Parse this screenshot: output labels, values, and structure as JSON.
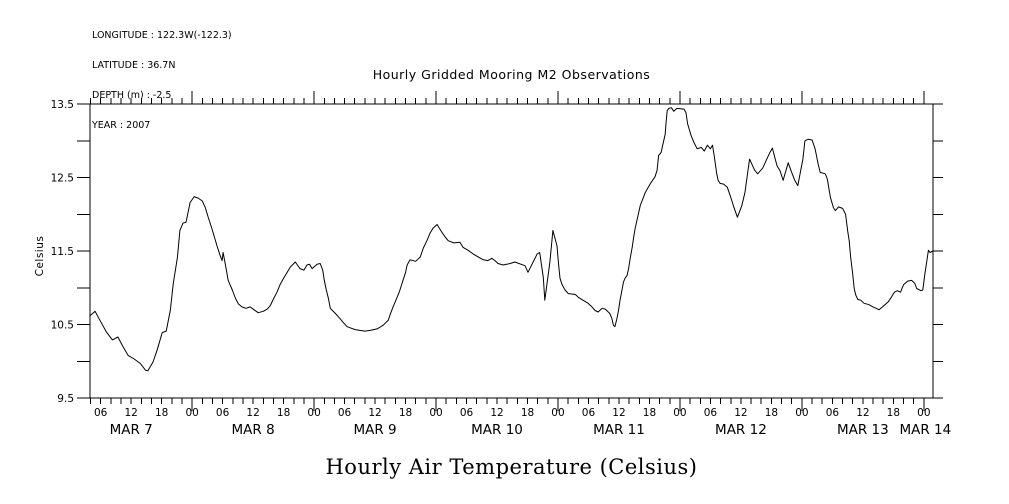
{
  "meta": {
    "longitude": "LONGITUDE : 122.3W(-122.3)",
    "latitude": "LATITUDE : 36.7N",
    "depth": "DEPTH (m) : -2.5",
    "year": "YEAR : 2007"
  },
  "title": "Hourly Gridded Mooring M2 Observations",
  "bottom_title": "Hourly Air Temperature (Celsius)",
  "y_axis_label": "Celsius",
  "chart_data": {
    "type": "line",
    "title": "Hourly Gridded Mooring M2 Observations",
    "xlabel": "Hourly Air Temperature (Celsius)",
    "ylabel": "Celsius",
    "ylim": [
      9.5,
      13.5
    ],
    "y_major_ticks": [
      9.5,
      10.5,
      11.5,
      12.5,
      13.5
    ],
    "y_minor_step": 0.5,
    "x_hours_range": [
      3.9,
      169.8
    ],
    "x_minor_step_hours": 2,
    "x_major_every_hours": 24,
    "grid": false,
    "line_color": "#000000",
    "background": "#ffffff",
    "hour_labels": [
      [
        6,
        "06"
      ],
      [
        12,
        "12"
      ],
      [
        18,
        "18"
      ],
      [
        24,
        "00"
      ],
      [
        30,
        "06"
      ],
      [
        36,
        "12"
      ],
      [
        42,
        "18"
      ],
      [
        48,
        "00"
      ],
      [
        54,
        "06"
      ],
      [
        60,
        "12"
      ],
      [
        66,
        "18"
      ],
      [
        72,
        "00"
      ],
      [
        78,
        "06"
      ],
      [
        84,
        "12"
      ],
      [
        90,
        "18"
      ],
      [
        96,
        "00"
      ],
      [
        102,
        "06"
      ],
      [
        108,
        "12"
      ],
      [
        114,
        "18"
      ],
      [
        120,
        "00"
      ],
      [
        126,
        "06"
      ],
      [
        132,
        "12"
      ],
      [
        138,
        "18"
      ],
      [
        144,
        "00"
      ],
      [
        150,
        "06"
      ],
      [
        156,
        "12"
      ],
      [
        162,
        "18"
      ],
      [
        168,
        "00"
      ]
    ],
    "day_labels": [
      [
        12,
        "MAR 7"
      ],
      [
        36,
        "MAR 8"
      ],
      [
        60,
        "MAR 9"
      ],
      [
        84,
        "MAR 10"
      ],
      [
        108,
        "MAR 11"
      ],
      [
        132,
        "MAR 12"
      ],
      [
        156,
        "MAR 13"
      ],
      [
        168.3,
        "MAR 14"
      ]
    ],
    "series": [
      {
        "name": "air_temperature_celsius",
        "x_unit": "hours_since_mar7_0000",
        "points": [
          [
            3.9,
            10.62
          ],
          [
            4.9,
            10.68
          ],
          [
            5.9,
            10.55
          ],
          [
            7.1,
            10.4
          ],
          [
            8.3,
            10.29
          ],
          [
            9.4,
            10.33
          ],
          [
            10.4,
            10.2
          ],
          [
            11.4,
            10.08
          ],
          [
            12.6,
            10.03
          ],
          [
            13.8,
            9.97
          ],
          [
            14.8,
            9.88
          ],
          [
            15.3,
            9.87
          ],
          [
            16.3,
            9.99
          ],
          [
            17.1,
            10.15
          ],
          [
            18.1,
            10.39
          ],
          [
            18.9,
            10.41
          ],
          [
            19.7,
            10.69
          ],
          [
            20.3,
            11.06
          ],
          [
            21.1,
            11.41
          ],
          [
            21.6,
            11.78
          ],
          [
            22.2,
            11.88
          ],
          [
            22.8,
            11.89
          ],
          [
            23.6,
            12.16
          ],
          [
            24.4,
            12.24
          ],
          [
            25.2,
            12.22
          ],
          [
            26.0,
            12.18
          ],
          [
            26.6,
            12.09
          ],
          [
            27.2,
            11.95
          ],
          [
            27.9,
            11.8
          ],
          [
            28.9,
            11.57
          ],
          [
            29.5,
            11.44
          ],
          [
            29.9,
            11.37
          ],
          [
            30.1,
            11.48
          ],
          [
            30.5,
            11.33
          ],
          [
            31.1,
            11.1
          ],
          [
            31.9,
            10.97
          ],
          [
            32.5,
            10.86
          ],
          [
            33.1,
            10.78
          ],
          [
            33.8,
            10.74
          ],
          [
            34.6,
            10.72
          ],
          [
            35.4,
            10.74
          ],
          [
            36.2,
            10.7
          ],
          [
            37.0,
            10.66
          ],
          [
            38.0,
            10.68
          ],
          [
            38.8,
            10.71
          ],
          [
            39.4,
            10.76
          ],
          [
            40.1,
            10.86
          ],
          [
            40.7,
            10.94
          ],
          [
            41.3,
            11.04
          ],
          [
            42.0,
            11.13
          ],
          [
            42.7,
            11.21
          ],
          [
            43.3,
            11.28
          ],
          [
            44.0,
            11.33
          ],
          [
            44.3,
            11.35
          ],
          [
            45.2,
            11.26
          ],
          [
            46.0,
            11.24
          ],
          [
            46.6,
            11.31
          ],
          [
            47.1,
            11.32
          ],
          [
            47.6,
            11.26
          ],
          [
            48.6,
            11.32
          ],
          [
            49.2,
            11.33
          ],
          [
            49.7,
            11.24
          ],
          [
            50.0,
            11.1
          ],
          [
            50.4,
            10.97
          ],
          [
            50.8,
            10.86
          ],
          [
            51.2,
            10.72
          ],
          [
            51.6,
            10.69
          ],
          [
            52.2,
            10.65
          ],
          [
            53.1,
            10.58
          ],
          [
            53.7,
            10.53
          ],
          [
            54.5,
            10.47
          ],
          [
            55.3,
            10.45
          ],
          [
            56.1,
            10.43
          ],
          [
            57.0,
            10.42
          ],
          [
            58.0,
            10.41
          ],
          [
            59.0,
            10.42
          ],
          [
            60.4,
            10.44
          ],
          [
            61.6,
            10.49
          ],
          [
            62.6,
            10.56
          ],
          [
            63.0,
            10.64
          ],
          [
            63.5,
            10.73
          ],
          [
            64.1,
            10.83
          ],
          [
            64.8,
            10.95
          ],
          [
            65.4,
            11.08
          ],
          [
            66.0,
            11.21
          ],
          [
            66.3,
            11.31
          ],
          [
            66.9,
            11.38
          ],
          [
            68.0,
            11.36
          ],
          [
            68.9,
            11.42
          ],
          [
            69.5,
            11.54
          ],
          [
            70.2,
            11.64
          ],
          [
            70.8,
            11.74
          ],
          [
            71.4,
            11.81
          ],
          [
            72.2,
            11.86
          ],
          [
            73.2,
            11.75
          ],
          [
            73.8,
            11.69
          ],
          [
            74.4,
            11.64
          ],
          [
            75.5,
            11.61
          ],
          [
            76.7,
            11.62
          ],
          [
            77.3,
            11.55
          ],
          [
            78.3,
            11.51
          ],
          [
            79.3,
            11.46
          ],
          [
            80.3,
            11.42
          ],
          [
            81.3,
            11.38
          ],
          [
            82.2,
            11.37
          ],
          [
            83.0,
            11.4
          ],
          [
            83.6,
            11.37
          ],
          [
            84.2,
            11.33
          ],
          [
            85.2,
            11.31
          ],
          [
            86.6,
            11.33
          ],
          [
            87.5,
            11.35
          ],
          [
            89.5,
            11.3
          ],
          [
            90.1,
            11.21
          ],
          [
            91.9,
            11.46
          ],
          [
            92.4,
            11.48
          ],
          [
            93.1,
            11.14
          ],
          [
            93.4,
            10.83
          ],
          [
            94.4,
            11.35
          ],
          [
            95.0,
            11.78
          ],
          [
            95.8,
            11.57
          ],
          [
            96.1,
            11.33
          ],
          [
            96.4,
            11.13
          ],
          [
            96.8,
            11.04
          ],
          [
            97.4,
            10.97
          ],
          [
            98.0,
            10.92
          ],
          [
            99.4,
            10.91
          ],
          [
            100.0,
            10.87
          ],
          [
            100.9,
            10.83
          ],
          [
            101.9,
            10.79
          ],
          [
            102.7,
            10.74
          ],
          [
            103.3,
            10.69
          ],
          [
            103.9,
            10.67
          ],
          [
            104.7,
            10.72
          ],
          [
            105.3,
            10.71
          ],
          [
            106.2,
            10.65
          ],
          [
            106.6,
            10.58
          ],
          [
            106.9,
            10.49
          ],
          [
            107.2,
            10.47
          ],
          [
            107.6,
            10.58
          ],
          [
            107.9,
            10.69
          ],
          [
            108.2,
            10.83
          ],
          [
            108.6,
            10.97
          ],
          [
            108.9,
            11.08
          ],
          [
            109.2,
            11.13
          ],
          [
            109.6,
            11.17
          ],
          [
            109.9,
            11.26
          ],
          [
            110.2,
            11.4
          ],
          [
            110.6,
            11.55
          ],
          [
            110.9,
            11.69
          ],
          [
            111.2,
            11.81
          ],
          [
            112.2,
            12.12
          ],
          [
            113.2,
            12.3
          ],
          [
            114.2,
            12.42
          ],
          [
            115.1,
            12.51
          ],
          [
            115.5,
            12.6
          ],
          [
            115.8,
            12.8
          ],
          [
            116.3,
            12.84
          ],
          [
            117.1,
            13.09
          ],
          [
            117.3,
            13.27
          ],
          [
            117.5,
            13.41
          ],
          [
            117.8,
            13.44
          ],
          [
            118.3,
            13.45
          ],
          [
            118.8,
            13.4
          ],
          [
            119.4,
            13.44
          ],
          [
            120.8,
            13.43
          ],
          [
            121.2,
            13.38
          ],
          [
            121.5,
            13.23
          ],
          [
            122.2,
            13.07
          ],
          [
            122.8,
            12.97
          ],
          [
            123.4,
            12.89
          ],
          [
            124.2,
            12.91
          ],
          [
            124.8,
            12.86
          ],
          [
            125.4,
            12.94
          ],
          [
            126.0,
            12.89
          ],
          [
            126.4,
            12.94
          ],
          [
            126.8,
            12.77
          ],
          [
            127.2,
            12.57
          ],
          [
            127.5,
            12.46
          ],
          [
            127.9,
            12.42
          ],
          [
            128.6,
            12.41
          ],
          [
            129.3,
            12.37
          ],
          [
            129.9,
            12.25
          ],
          [
            130.5,
            12.12
          ],
          [
            131.3,
            11.96
          ],
          [
            132.2,
            12.12
          ],
          [
            132.8,
            12.3
          ],
          [
            133.4,
            12.6
          ],
          [
            133.7,
            12.75
          ],
          [
            134.7,
            12.6
          ],
          [
            135.3,
            12.55
          ],
          [
            136.3,
            12.63
          ],
          [
            137.1,
            12.75
          ],
          [
            137.7,
            12.84
          ],
          [
            138.2,
            12.9
          ],
          [
            139.1,
            12.66
          ],
          [
            139.7,
            12.59
          ],
          [
            140.3,
            12.46
          ],
          [
            141.3,
            12.7
          ],
          [
            142.0,
            12.57
          ],
          [
            142.6,
            12.46
          ],
          [
            143.2,
            12.39
          ],
          [
            144.2,
            12.75
          ],
          [
            144.6,
            13.0
          ],
          [
            145.2,
            13.02
          ],
          [
            146.0,
            13.01
          ],
          [
            146.6,
            12.89
          ],
          [
            147.2,
            12.68
          ],
          [
            147.6,
            12.57
          ],
          [
            148.6,
            12.55
          ],
          [
            149.0,
            12.48
          ],
          [
            149.6,
            12.23
          ],
          [
            150.2,
            12.09
          ],
          [
            150.6,
            12.05
          ],
          [
            151.2,
            12.1
          ],
          [
            152.0,
            12.08
          ],
          [
            152.6,
            12.0
          ],
          [
            153.0,
            11.78
          ],
          [
            153.3,
            11.64
          ],
          [
            153.6,
            11.41
          ],
          [
            154.0,
            11.19
          ],
          [
            154.3,
            10.99
          ],
          [
            154.6,
            10.9
          ],
          [
            155.0,
            10.84
          ],
          [
            155.6,
            10.83
          ],
          [
            156.2,
            10.79
          ],
          [
            157.2,
            10.77
          ],
          [
            158.0,
            10.74
          ],
          [
            158.6,
            10.72
          ],
          [
            159.2,
            10.7
          ],
          [
            160.2,
            10.76
          ],
          [
            161.0,
            10.81
          ],
          [
            161.6,
            10.87
          ],
          [
            162.2,
            10.94
          ],
          [
            162.8,
            10.96
          ],
          [
            163.4,
            10.94
          ],
          [
            164.0,
            11.04
          ],
          [
            164.8,
            11.09
          ],
          [
            165.6,
            11.1
          ],
          [
            166.2,
            11.06
          ],
          [
            166.6,
            10.99
          ],
          [
            167.4,
            10.96
          ],
          [
            167.8,
            10.97
          ],
          [
            168.2,
            11.19
          ],
          [
            168.6,
            11.37
          ],
          [
            168.9,
            11.51
          ],
          [
            169.2,
            11.48
          ],
          [
            169.8,
            11.5
          ]
        ]
      }
    ]
  }
}
